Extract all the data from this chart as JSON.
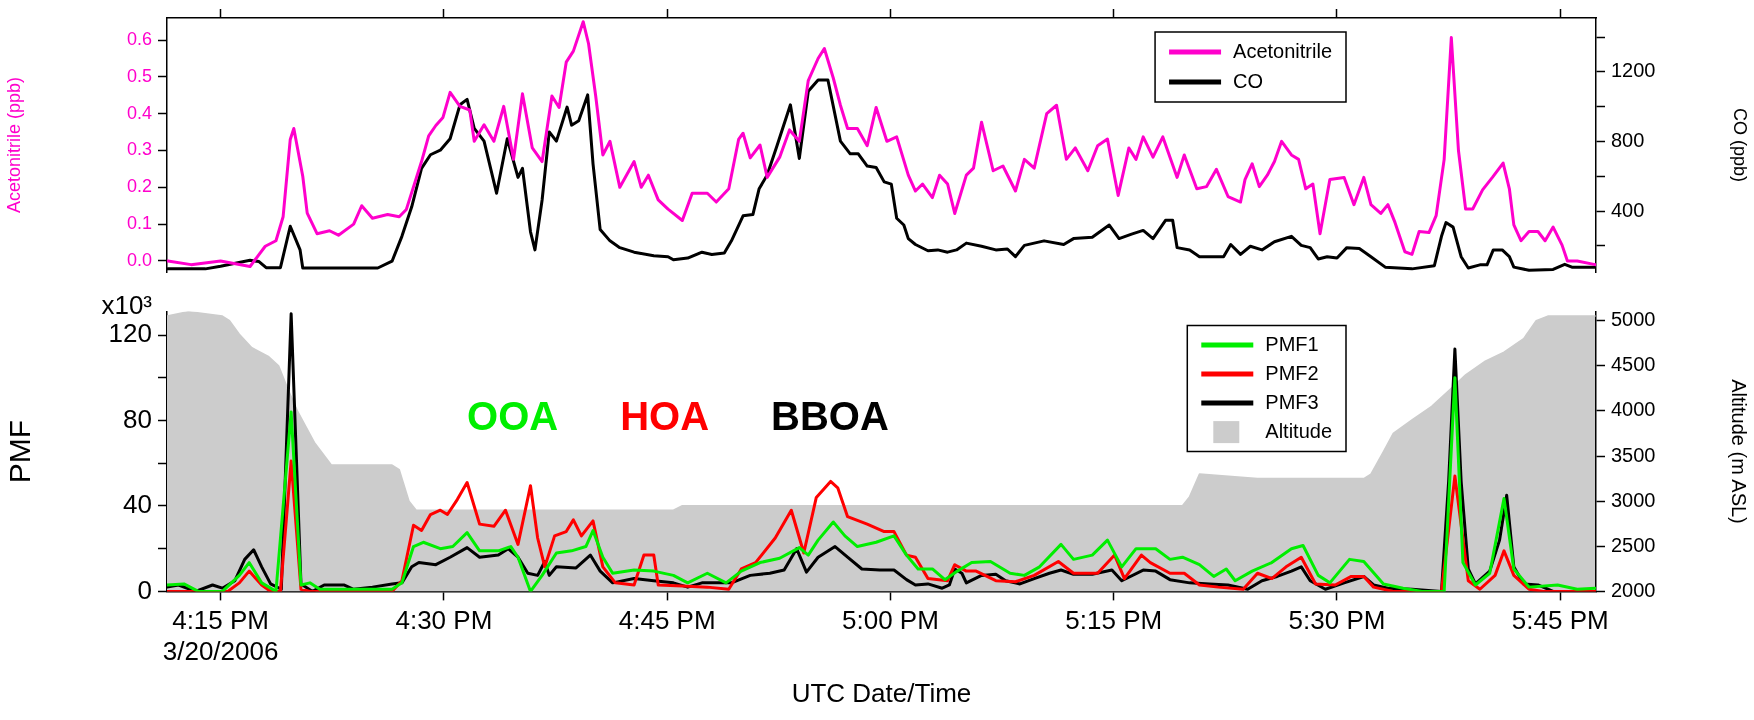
{
  "chart_data": [
    {
      "type": "line",
      "ylabel": "Acetonitrile (ppb)",
      "y2label": "CO (ppb)",
      "legend": "top right",
      "tick_labels": "y",
      "xlim": [
        16.19,
        17.79
      ],
      "xticks": [
        {
          "value": 16.25,
          "label": null
        },
        {
          "value": 16.5,
          "label": null
        },
        {
          "value": 16.75,
          "label": null
        },
        {
          "value": 17,
          "label": null
        },
        {
          "value": 17.25,
          "label": null
        },
        {
          "value": 17.5,
          "label": null
        },
        {
          "value": 17.75,
          "label": null
        }
      ],
      "ylim": [
        -0.03,
        0.66
      ],
      "yticks": [
        {
          "value": 0,
          "label": "0.0"
        },
        0.1,
        0.2,
        0.3,
        0.4,
        0.5,
        0.6
      ],
      "y2lim": [
        50,
        1510
      ],
      "y2ticks": [
        {
          "value": 200,
          "label": null
        },
        400,
        {
          "value": 600,
          "label": null
        },
        800,
        {
          "value": 1000,
          "label": null
        },
        1200,
        {
          "value": 1400,
          "label": null
        }
      ],
      "series": [
        {
          "name": "Acetonitrile",
          "color": "#ff00cc",
          "x": [
            16.191,
            16.217,
            16.25,
            16.283,
            16.3,
            16.312,
            16.32,
            16.328,
            16.332,
            16.342,
            16.347,
            16.358,
            16.372,
            16.382,
            16.399,
            16.408,
            16.42,
            16.437,
            16.45,
            16.458,
            16.475,
            16.483,
            16.491,
            16.499,
            16.507,
            16.518,
            16.529,
            16.534,
            16.545,
            16.556,
            16.567,
            16.578,
            16.588,
            16.599,
            16.61,
            16.621,
            16.629,
            16.637,
            16.645,
            16.656,
            16.662,
            16.67,
            16.678,
            16.686,
            16.697,
            16.713,
            16.721,
            16.729,
            16.74,
            16.751,
            16.767,
            16.778,
            16.795,
            16.805,
            16.819,
            16.83,
            16.835,
            16.843,
            16.854,
            16.862,
            16.876,
            16.887,
            16.898,
            16.908,
            16.919,
            16.926,
            16.936,
            16.944,
            16.952,
            16.963,
            16.974,
            16.984,
            16.996,
            17.007,
            17.02,
            17.028,
            17.036,
            17.047,
            17.055,
            17.064,
            17.072,
            17.085,
            17.093,
            17.102,
            17.115,
            17.126,
            17.14,
            17.15,
            17.161,
            17.175,
            17.186,
            17.197,
            17.207,
            17.221,
            17.232,
            17.243,
            17.255,
            17.267,
            17.275,
            17.283,
            17.294,
            17.305,
            17.321,
            17.329,
            17.343,
            17.354,
            17.365,
            17.378,
            17.392,
            17.397,
            17.405,
            17.413,
            17.422,
            17.43,
            17.438,
            17.449,
            17.457,
            17.465,
            17.473,
            17.481,
            17.492,
            17.508,
            17.519,
            17.53,
            17.538,
            17.549,
            17.557,
            17.565,
            17.576,
            17.584,
            17.592,
            17.603,
            17.611,
            17.62,
            17.628,
            17.636,
            17.644,
            17.652,
            17.663,
            17.674,
            17.686,
            17.693,
            17.698,
            17.706,
            17.715,
            17.725,
            17.733,
            17.742,
            17.752,
            17.758,
            17.769,
            17.789
          ],
          "values": [
            0.0,
            -0.01,
            0.0,
            -0.015,
            0.04,
            0.055,
            0.12,
            0.33,
            0.36,
            0.23,
            0.13,
            0.074,
            0.082,
            0.07,
            0.1,
            0.15,
            0.116,
            0.126,
            0.12,
            0.14,
            0.27,
            0.34,
            0.368,
            0.39,
            0.458,
            0.42,
            0.41,
            0.325,
            0.37,
            0.325,
            0.42,
            0.276,
            0.454,
            0.307,
            0.27,
            0.448,
            0.417,
            0.54,
            0.57,
            0.65,
            0.59,
            0.448,
            0.288,
            0.325,
            0.2,
            0.27,
            0.2,
            0.233,
            0.166,
            0.141,
            0.11,
            0.184,
            0.184,
            0.16,
            0.196,
            0.33,
            0.347,
            0.28,
            0.315,
            0.227,
            0.282,
            0.356,
            0.325,
            0.49,
            0.55,
            0.577,
            0.497,
            0.423,
            0.36,
            0.36,
            0.313,
            0.417,
            0.325,
            0.337,
            0.233,
            0.19,
            0.209,
            0.172,
            0.233,
            0.209,
            0.129,
            0.233,
            0.252,
            0.377,
            0.245,
            0.258,
            0.19,
            0.276,
            0.252,
            0.4,
            0.423,
            0.276,
            0.307,
            0.245,
            0.313,
            0.331,
            0.178,
            0.307,
            0.276,
            0.337,
            0.282,
            0.337,
            0.227,
            0.288,
            0.196,
            0.202,
            0.249,
            0.175,
            0.16,
            0.221,
            0.264,
            0.202,
            0.233,
            0.27,
            0.325,
            0.288,
            0.276,
            0.196,
            0.209,
            0.074,
            0.221,
            0.227,
            0.153,
            0.227,
            0.153,
            0.129,
            0.153,
            0.104,
            0.025,
            0.018,
            0.08,
            0.077,
            0.123,
            0.276,
            0.607,
            0.3,
            0.141,
            0.141,
            0.193,
            0.227,
            0.266,
            0.196,
            0.098,
            0.055,
            0.08,
            0.08,
            0.055,
            0.092,
            0.043,
            0.0,
            0.0,
            -0.01
          ]
        },
        {
          "name": "CO",
          "color": "#000000",
          "axis": "y2",
          "x": [
            16.191,
            16.233,
            16.25,
            16.283,
            16.293,
            16.301,
            16.317,
            16.328,
            16.339,
            16.342,
            16.426,
            16.442,
            16.453,
            16.464,
            16.475,
            16.485,
            16.496,
            16.507,
            16.518,
            16.526,
            16.534,
            16.545,
            16.559,
            16.571,
            16.583,
            16.588,
            16.597,
            16.602,
            16.61,
            16.618,
            16.626,
            16.638,
            16.643,
            16.651,
            16.661,
            16.667,
            16.675,
            16.686,
            16.697,
            16.713,
            16.735,
            16.751,
            16.757,
            16.773,
            16.789,
            16.8,
            16.814,
            16.822,
            16.835,
            16.846,
            16.853,
            16.862,
            16.873,
            16.888,
            16.898,
            16.908,
            16.919,
            16.93,
            16.944,
            16.955,
            16.964,
            16.974,
            16.984,
            16.993,
            17.001,
            17.007,
            17.015,
            17.02,
            17.028,
            17.042,
            17.053,
            17.064,
            17.074,
            17.085,
            17.102,
            17.118,
            17.131,
            17.14,
            17.15,
            17.172,
            17.194,
            17.205,
            17.226,
            17.245,
            17.256,
            17.27,
            17.283,
            17.294,
            17.308,
            17.316,
            17.321,
            17.335,
            17.346,
            17.373,
            17.381,
            17.392,
            17.403,
            17.416,
            17.43,
            17.449,
            17.46,
            17.47,
            17.479,
            17.489,
            17.5,
            17.511,
            17.525,
            17.538,
            17.554,
            17.584,
            17.609,
            17.617,
            17.622,
            17.63,
            17.639,
            17.647,
            17.66,
            17.668,
            17.675,
            17.685,
            17.693,
            17.698,
            17.715,
            17.742,
            17.755,
            17.763,
            17.789
          ],
          "values": [
            68,
            68,
            83,
            117,
            110,
            75,
            75,
            313,
            177,
            73,
            73,
            112,
            255,
            425,
            646,
            724,
            750,
            816,
            1011,
            1042,
            876,
            802,
            503,
            816,
            594,
            646,
            281,
            177,
            464,
            855,
            802,
            998,
            894,
            920,
            1068,
            672,
            294,
            229,
            190,
            164,
            143,
            138,
            120,
            130,
            164,
            151,
            159,
            229,
            373,
            380,
            529,
            607,
            776,
            1011,
            703,
            1089,
            1154,
            1154,
            802,
            729,
            729,
            659,
            651,
            568,
            555,
            359,
            320,
            242,
            208,
            172,
            177,
            164,
            177,
            216,
            198,
            177,
            182,
            138,
            203,
            229,
            208,
            242,
            250,
            320,
            242,
            268,
            289,
            242,
            347,
            347,
            190,
            177,
            138,
            138,
            208,
            151,
            198,
            177,
            224,
            255,
            203,
            190,
            125,
            138,
            130,
            190,
            185,
            138,
            78,
            68,
            86,
            255,
            334,
            308,
            138,
            73,
            91,
            91,
            177,
            177,
            138,
            78,
            60,
            65,
            94,
            78,
            78
          ]
        }
      ]
    },
    {
      "type": "line",
      "ylabel": "PMF",
      "y2label": "Altitude (m ASL)",
      "xlabel": "UTC Date/Time",
      "legend": "top right",
      "annotations": [
        "OOA",
        "HOA",
        "BBOA",
        "x10³"
      ],
      "xlim": [
        16.19,
        17.79
      ],
      "xticks": [
        {
          "value": 16.25,
          "label": "4:15 PM\n3/20/2006"
        },
        {
          "value": 16.5,
          "label": "4:30 PM"
        },
        {
          "value": 16.75,
          "label": "4:45 PM"
        },
        {
          "value": 17,
          "label": "5:00 PM"
        },
        {
          "value": 17.25,
          "label": "5:15 PM"
        },
        {
          "value": 17.5,
          "label": "5:30 PM"
        },
        {
          "value": 17.75,
          "label": "5:45 PM"
        }
      ],
      "ylim": [
        0,
        131
      ],
      "yticks": [
        0,
        {
          "value": 20,
          "label": null
        },
        40,
        {
          "value": 60,
          "label": null
        },
        80,
        {
          "value": 100,
          "label": null
        },
        120
      ],
      "y2lim": [
        2000,
        5100
      ],
      "y2ticks": [
        2000,
        2500,
        3000,
        3500,
        4000,
        4500,
        5000
      ],
      "series": [
        {
          "name": "PMF1",
          "color": "#00ee00",
          "x": [
            16.19,
            16.209,
            16.225,
            16.252,
            16.271,
            16.282,
            16.296,
            16.312,
            16.329,
            16.34,
            16.35,
            16.361,
            16.442,
            16.453,
            16.466,
            16.477,
            16.496,
            16.51,
            16.526,
            16.54,
            16.561,
            16.575,
            16.583,
            16.597,
            16.61,
            16.626,
            16.643,
            16.659,
            16.667,
            16.678,
            16.689,
            16.713,
            16.735,
            16.757,
            16.773,
            16.795,
            16.816,
            16.833,
            16.854,
            16.876,
            16.898,
            16.908,
            16.919,
            16.936,
            16.949,
            16.963,
            16.984,
            17.004,
            17.018,
            17.031,
            17.047,
            17.061,
            17.075,
            17.091,
            17.112,
            17.134,
            17.15,
            17.167,
            17.191,
            17.205,
            17.226,
            17.243,
            17.259,
            17.275,
            17.297,
            17.313,
            17.327,
            17.346,
            17.362,
            17.376,
            17.386,
            17.405,
            17.427,
            17.449,
            17.462,
            17.479,
            17.492,
            17.514,
            17.53,
            17.552,
            17.574,
            17.595,
            17.62,
            17.632,
            17.641,
            17.655,
            17.671,
            17.687,
            17.698,
            17.715,
            17.747,
            17.769,
            17.789
          ],
          "values": [
            3,
            3.5,
            0,
            0,
            7.5,
            13.5,
            4,
            0,
            84,
            3,
            4,
            1,
            1,
            4,
            21,
            23,
            20,
            21,
            27.5,
            19,
            19,
            21,
            16,
            0,
            7.5,
            18,
            19,
            21,
            28.5,
            16,
            8.5,
            10,
            9.5,
            7.5,
            4,
            8.5,
            4,
            9.5,
            13.5,
            15.5,
            20.5,
            17,
            24,
            32.5,
            26,
            21,
            23,
            26,
            17,
            10.5,
            10.5,
            5.5,
            9.5,
            13.5,
            14,
            8.5,
            7.5,
            11.5,
            22,
            15,
            17,
            24,
            11.5,
            20,
            20,
            15,
            16,
            12.5,
            7,
            10.5,
            5,
            9.5,
            13.5,
            20,
            21.5,
            7.5,
            4,
            15,
            14,
            3.5,
            1.5,
            0,
            0,
            100,
            13.5,
            3,
            8.5,
            43.5,
            10.5,
            2,
            3,
            1,
            1.5
          ]
        },
        {
          "name": "PMF2",
          "color": "#ff0000",
          "x": [
            16.19,
            16.258,
            16.271,
            16.282,
            16.296,
            16.306,
            16.317,
            16.329,
            16.34,
            16.35,
            16.442,
            16.453,
            16.466,
            16.475,
            16.485,
            16.496,
            16.504,
            16.515,
            16.526,
            16.54,
            16.556,
            16.569,
            16.583,
            16.597,
            16.605,
            16.613,
            16.624,
            16.637,
            16.645,
            16.654,
            16.667,
            16.678,
            16.692,
            16.713,
            16.724,
            16.735,
            16.74,
            16.767,
            16.795,
            16.819,
            16.833,
            16.849,
            16.871,
            16.889,
            16.903,
            16.917,
            16.933,
            16.941,
            16.952,
            16.974,
            16.993,
            17.004,
            17.018,
            17.028,
            17.042,
            17.064,
            17.072,
            17.085,
            17.096,
            17.118,
            17.14,
            17.161,
            17.188,
            17.205,
            17.232,
            17.251,
            17.262,
            17.281,
            17.291,
            17.313,
            17.329,
            17.346,
            17.367,
            17.395,
            17.411,
            17.427,
            17.443,
            17.46,
            17.476,
            17.498,
            17.516,
            17.53,
            17.541,
            17.563,
            17.617,
            17.632,
            17.647,
            17.66,
            17.677,
            17.687,
            17.698,
            17.715,
            17.731,
            17.789
          ],
          "values": [
            0,
            0,
            4,
            9.5,
            3,
            0,
            0,
            61,
            1,
            0,
            0,
            5,
            31,
            28.5,
            36,
            38,
            36,
            43,
            51,
            31.5,
            30.5,
            38,
            22,
            49.5,
            25,
            11.5,
            26,
            28,
            33.5,
            26,
            33,
            11.5,
            4,
            3,
            17,
            17,
            3,
            2.5,
            2,
            1,
            10.5,
            13.5,
            25,
            38,
            18,
            44,
            51.5,
            48.5,
            35,
            31.5,
            28,
            28,
            17,
            16,
            6,
            5,
            12.5,
            9.5,
            9.5,
            5,
            4.5,
            7.5,
            14,
            8.5,
            8.5,
            17,
            6,
            17,
            13.5,
            8.5,
            8.5,
            3,
            2,
            1,
            8.5,
            6,
            11.5,
            16,
            3.5,
            3,
            7,
            7,
            2,
            0,
            0,
            54,
            5,
            1,
            7.5,
            19,
            7.5,
            1,
            0,
            0
          ]
        },
        {
          "name": "PMF3",
          "color": "#000000",
          "x": [
            16.19,
            16.203,
            16.222,
            16.241,
            16.252,
            16.266,
            16.277,
            16.287,
            16.296,
            16.306,
            16.318,
            16.329,
            16.34,
            16.353,
            16.366,
            16.388,
            16.399,
            16.42,
            16.442,
            16.453,
            16.464,
            16.472,
            16.491,
            16.507,
            16.526,
            16.54,
            16.561,
            16.572,
            16.583,
            16.594,
            16.605,
            16.613,
            16.618,
            16.626,
            16.648,
            16.664,
            16.675,
            16.689,
            16.713,
            16.735,
            16.757,
            16.773,
            16.789,
            16.822,
            16.843,
            16.865,
            16.881,
            16.895,
            16.906,
            16.919,
            16.938,
            16.952,
            16.968,
            16.988,
            17.004,
            17.018,
            17.028,
            17.042,
            17.058,
            17.066,
            17.072,
            17.08,
            17.085,
            17.102,
            17.118,
            17.129,
            17.145,
            17.161,
            17.178,
            17.191,
            17.205,
            17.226,
            17.248,
            17.259,
            17.283,
            17.297,
            17.313,
            17.335,
            17.357,
            17.378,
            17.4,
            17.416,
            17.433,
            17.449,
            17.46,
            17.47,
            17.487,
            17.508,
            17.53,
            17.541,
            17.557,
            17.584,
            17.617,
            17.625,
            17.632,
            17.639,
            17.647,
            17.655,
            17.671,
            17.682,
            17.69,
            17.698,
            17.709,
            17.725,
            17.742,
            17.789
          ],
          "values": [
            2,
            3,
            0,
            3,
            1.5,
            5,
            15,
            19.5,
            11.5,
            3.5,
            1,
            130,
            3.5,
            0,
            3,
            3,
            1,
            2,
            3.5,
            4,
            11.5,
            13.5,
            12.5,
            16,
            20.5,
            16,
            17,
            20,
            16,
            8.5,
            7.5,
            14,
            7.5,
            11.5,
            11,
            17,
            9.5,
            4,
            6,
            5,
            4,
            2,
            4,
            4,
            7.5,
            8.5,
            10,
            20,
            9,
            16,
            21,
            16,
            10.5,
            10,
            10,
            5.5,
            3,
            3.5,
            1.5,
            3,
            10.5,
            8.5,
            4,
            7.5,
            8,
            5,
            3.5,
            6,
            8.5,
            10,
            8,
            8,
            10,
            5,
            10,
            9.5,
            5.5,
            4,
            3.5,
            3,
            1,
            5,
            7,
            9.5,
            11.5,
            5,
            1,
            4,
            7,
            3,
            1.5,
            1,
            0,
            51.5,
            113.5,
            51.5,
            10.5,
            3.5,
            9.5,
            24,
            45,
            11.5,
            3.5,
            3,
            0,
            0
          ]
        },
        {
          "name": "Altitude",
          "type": "area",
          "color": "#cccccc",
          "axis": "y2",
          "x": [
            16.19,
            16.214,
            16.252,
            16.26,
            16.271,
            16.285,
            16.304,
            16.315,
            16.325,
            16.336,
            16.355,
            16.374,
            16.442,
            16.45,
            16.461,
            16.469,
            16.757,
            16.767,
            17.313,
            17.327,
            17.335,
            17.346,
            17.411,
            17.53,
            17.538,
            17.552,
            17.563,
            17.584,
            17.606,
            17.628,
            17.644,
            17.666,
            17.687,
            17.709,
            17.723,
            17.736,
            17.789
          ],
          "values": [
            5050,
            5100,
            5050,
            5000,
            4850,
            4700,
            4600,
            4500,
            4250,
            4000,
            3650,
            3400,
            3400,
            3350,
            3000,
            2900,
            2900,
            2950,
            2950,
            2950,
            3050,
            3300,
            3250,
            3250,
            3300,
            3550,
            3750,
            3900,
            4050,
            4250,
            4400,
            4550,
            4650,
            4800,
            5000,
            5050,
            5050
          ]
        }
      ]
    }
  ]
}
